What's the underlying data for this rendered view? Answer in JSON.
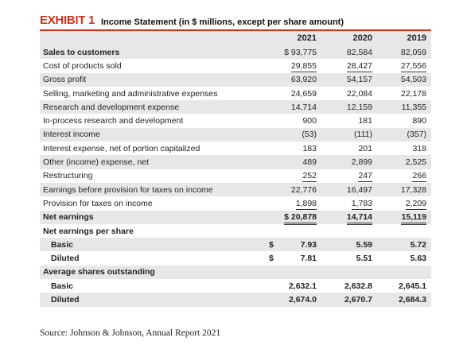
{
  "exhibit": {
    "label": "EXHIBIT 1",
    "title": "Income Statement (in $ millions, except per share amount)"
  },
  "columns": [
    "2021",
    "2020",
    "2019"
  ],
  "rows": [
    {
      "label": "Sales to customers",
      "values": [
        "$ 93,775",
        "82,584",
        "82,059"
      ],
      "bold_label": true
    },
    {
      "label": "Cost of products sold",
      "values": [
        "29,855",
        "28,427",
        "27,556"
      ]
    },
    {
      "label": "Gross profit",
      "values": [
        "63,920",
        "54,157",
        "54,503"
      ]
    },
    {
      "label": "Selling, marketing and administrative expenses",
      "values": [
        "24,659",
        "22,084",
        "22,178"
      ]
    },
    {
      "label": "Research and development expense",
      "values": [
        "14,714",
        "12,159",
        "11,355"
      ]
    },
    {
      "label": "In-process research and development",
      "values": [
        "900",
        "181",
        "890"
      ]
    },
    {
      "label": "Interest income",
      "values": [
        "(53)",
        "(111)",
        "(357)"
      ]
    },
    {
      "label": "Interest expense, net of portion capitalized",
      "values": [
        "183",
        "201",
        "318"
      ]
    },
    {
      "label": "Other (income) expense, net",
      "values": [
        "489",
        "2,899",
        "2,525"
      ]
    },
    {
      "label": "Restructuring",
      "values": [
        "252",
        "247",
        "266"
      ]
    },
    {
      "label": "Earnings before provision for taxes on income",
      "values": [
        "22,776",
        "16,497",
        "17,328"
      ]
    },
    {
      "label": "Provision for taxes on income",
      "values": [
        "1,898",
        "1,783",
        "2,209"
      ]
    },
    {
      "label": "Net earnings",
      "values": [
        "$ 20,878",
        "14,714",
        "15,119"
      ]
    }
  ],
  "eps": {
    "heading": "Net earnings per share",
    "basic_label": "Basic",
    "basic_currency": "$",
    "basic_values": [
      "7.93",
      "5.59",
      "5.72"
    ],
    "diluted_label": "Diluted",
    "diluted_currency": "$",
    "diluted_values": [
      "7.81",
      "5.51",
      "5.63"
    ]
  },
  "shares": {
    "heading": "Average shares outstanding",
    "basic_label": "Basic",
    "basic_values": [
      "2,632.1",
      "2,632.8",
      "2,645.1"
    ],
    "diluted_label": "Diluted",
    "diluted_values": [
      "2,674.0",
      "2,670.7",
      "2,684.3"
    ]
  },
  "source": "Source: Johnson & Johnson, Annual Report 2021"
}
